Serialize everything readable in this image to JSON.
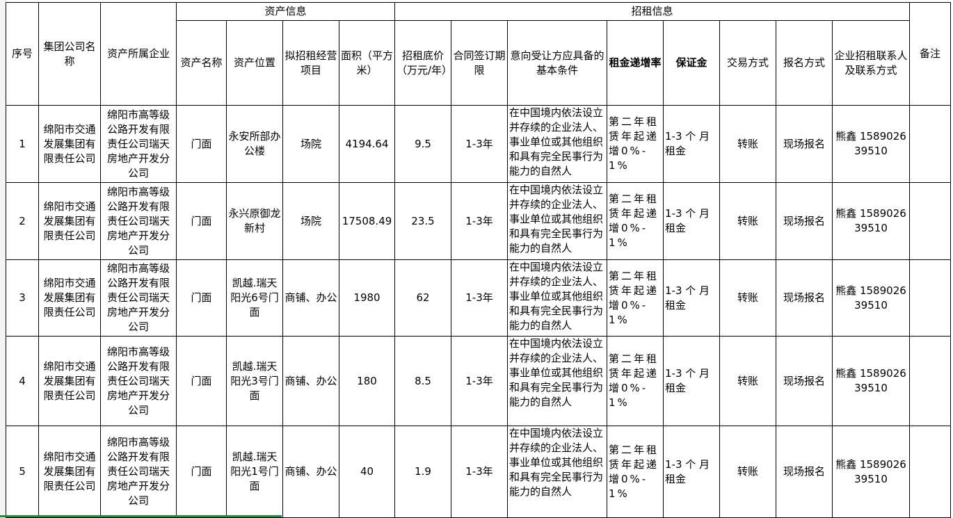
{
  "group_headers": {
    "asset_info": "资产信息",
    "lease_info": "招租信息"
  },
  "headers": {
    "seq": "序号",
    "group_company": "集团公司名称",
    "asset_owner": "资产所属企业",
    "asset_name": "资产名称",
    "asset_location": "资产位置",
    "planned_business": "拟招租经营项目",
    "area": "面积（平方米）",
    "base_price": "招租底价（万元/年）",
    "contract_term": "合同签订期限",
    "conditions": "意向受让方应具备的基本条件",
    "rent_increase": "租金递增率",
    "deposit": "保证金",
    "transaction": "交易方式",
    "registration": "报名方式",
    "contact": "企业招租联系人及联系方式",
    "remarks": "备注"
  },
  "rows": [
    {
      "seq": "1",
      "group_company": "绵阳市交通发展集团有限责任公司",
      "asset_owner": "绵阳市高等级公路开发有限责任公司瑞天房地产开发分公司",
      "asset_name": "门面",
      "asset_location": "永安所部办公楼",
      "planned_business": "场院",
      "area": "4194.64",
      "base_price": "9.5",
      "contract_term": "1-3年",
      "conditions": "在中国境内依法设立并存续的企业法人、事业单位或其他组织和具有完全民事行为能力的自然人",
      "rent_increase": "第二年租赁年起递增0%-1%",
      "deposit": "1-3 个 月租金",
      "transaction": "转账",
      "registration": "现场报名",
      "contact": "熊鑫 158902639510",
      "remarks": ""
    },
    {
      "seq": "2",
      "group_company": "绵阳市交通发展集团有限责任公司",
      "asset_owner": "绵阳市高等级公路开发有限责任公司瑞天房地产开发分公司",
      "asset_name": "门面",
      "asset_location": "永兴原御龙新村",
      "planned_business": "场院",
      "area": "17508.49",
      "base_price": "23.5",
      "contract_term": "1-3年",
      "conditions": "在中国境内依法设立并存续的企业法人、事业单位或其他组织和具有完全民事行为能力的自然人",
      "rent_increase": "第二年租赁年起递增0%-1%",
      "deposit": "1-3 个 月租金",
      "transaction": "转账",
      "registration": "现场报名",
      "contact": "熊鑫 158902639510",
      "remarks": ""
    },
    {
      "seq": "3",
      "group_company": "绵阳市交通发展集团有限责任公司",
      "asset_owner": "绵阳市高等级公路开发有限责任公司瑞天房地产开发分公司",
      "asset_name": "门面",
      "asset_location": "凯越.瑞天阳光6号门面",
      "planned_business": "商铺、办公",
      "area": "1980",
      "base_price": "62",
      "contract_term": "1-3年",
      "conditions": "在中国境内依法设立并存续的企业法人、事业单位或其他组织和具有完全民事行为能力的自然人",
      "rent_increase": "第二年租赁年起递增0%-1%",
      "deposit": "1-3 个 月租金",
      "transaction": "转账",
      "registration": "现场报名",
      "contact": "熊鑫 158902639510",
      "remarks": ""
    },
    {
      "seq": "4",
      "group_company": "绵阳市交通发展集团有限责任公司",
      "asset_owner": "绵阳市高等级公路开发有限责任公司瑞天房地产开发分公司",
      "asset_name": "门面",
      "asset_location": "凯越.瑞天阳光3号门面",
      "planned_business": "商铺、办公",
      "area": "180",
      "base_price": "8.5",
      "contract_term": "1-3年",
      "conditions": "在中国境内依法设立并存续的企业法人、事业单位或其他组织和具有完全民事行为能力的自然人",
      "rent_increase": "第二年租赁年起递增0%-1%",
      "deposit": "1-3 个 月租金",
      "transaction": "转账",
      "registration": "现场报名",
      "contact": "熊鑫 158902639510",
      "remarks": ""
    },
    {
      "seq": "5",
      "group_company": "绵阳市交通发展集团有限责任公司",
      "asset_owner": "绵阳市高等级公路开发有限责任公司瑞天房地产开发分公司",
      "asset_name": "门面",
      "asset_location": "凯越.瑞天阳光1号门面",
      "planned_business": "商铺、办公",
      "area": "40",
      "base_price": "1.9",
      "contract_term": "1-3年",
      "conditions": "在中国境内依法设立并存续的企业法人、事业单位或其他组织和具有完全民事行为能力的自然人",
      "rent_increase": "第二年租赁年起递增0%-1%",
      "deposit": "1-3 个 月租金",
      "transaction": "转账",
      "registration": "现场报名",
      "contact": "熊鑫 158902639510",
      "remarks": ""
    }
  ]
}
